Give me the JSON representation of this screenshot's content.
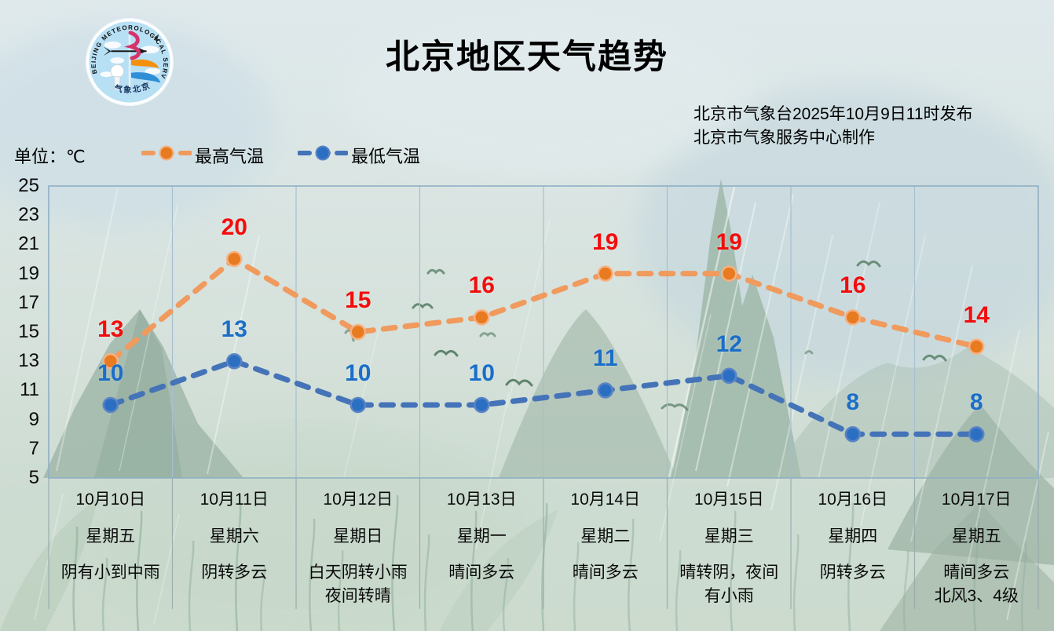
{
  "header": {
    "title": "北京地区天气趋势",
    "issued_line1": "北京市气象台2025年10月9日11时发布",
    "issued_line2": "北京市气象服务中心制作",
    "unit_label": "单位：℃",
    "logo": {
      "arc_text": "BEIJING METEOROLOGICAL SERVICE",
      "bottom_text": "气象北京"
    }
  },
  "legend": {
    "items": [
      {
        "label": "最高气温"
      },
      {
        "label": "最低气温"
      }
    ]
  },
  "colors": {
    "high_line": "#f09a5e",
    "high_marker": "#e87a1f",
    "high_marker_ring": "#f6b183",
    "high_label": "#f20d0d",
    "low_line": "#4473b8",
    "low_marker": "#2b6fc2",
    "low_marker_ring": "#5b84c4",
    "low_label": "#1b6ec8",
    "grid": "#a7bfd0",
    "border": "#8fafc4",
    "separator": "#97a9ad"
  },
  "chart_data": {
    "type": "line",
    "title": "北京地区天气趋势",
    "ylabel": "℃",
    "ylim": [
      5,
      25
    ],
    "yticks": [
      25,
      23,
      21,
      19,
      17,
      15,
      13,
      11,
      9,
      7,
      5
    ],
    "grid": "vertical-only",
    "legend_position": "top-left",
    "categories": [
      "10月10日",
      "10月11日",
      "10月12日",
      "10月13日",
      "10月14日",
      "10月15日",
      "10月16日",
      "10月17日"
    ],
    "series": [
      {
        "name": "最高气温",
        "values": [
          13,
          20,
          15,
          16,
          19,
          19,
          16,
          14
        ]
      },
      {
        "name": "最低气温",
        "values": [
          10,
          13,
          10,
          10,
          11,
          12,
          8,
          8
        ]
      }
    ],
    "days": [
      {
        "date": "10月10日",
        "weekday": "星期五",
        "weather": [
          "阴有小到中雨"
        ]
      },
      {
        "date": "10月11日",
        "weekday": "星期六",
        "weather": [
          "阴转多云"
        ]
      },
      {
        "date": "10月12日",
        "weekday": "星期日",
        "weather": [
          "白天阴转小雨",
          "夜间转晴"
        ]
      },
      {
        "date": "10月13日",
        "weekday": "星期一",
        "weather": [
          "晴间多云"
        ]
      },
      {
        "date": "10月14日",
        "weekday": "星期二",
        "weather": [
          "晴间多云"
        ]
      },
      {
        "date": "10月15日",
        "weekday": "星期三",
        "weather": [
          "晴转阴，夜间",
          "有小雨"
        ]
      },
      {
        "date": "10月16日",
        "weekday": "星期四",
        "weather": [
          "阴转多云"
        ]
      },
      {
        "date": "10月17日",
        "weekday": "星期五",
        "weather": [
          "晴间多云",
          "北风3、4级"
        ]
      }
    ]
  }
}
